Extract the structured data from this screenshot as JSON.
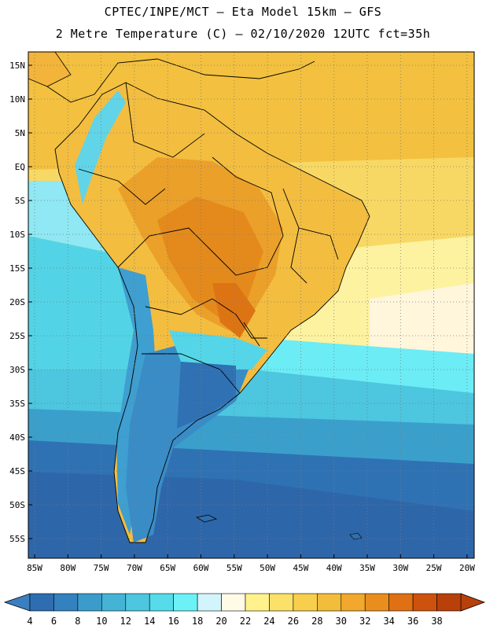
{
  "title_line1": "CPTEC/INPE/MCT –  Eta Model 15km – GFS",
  "title_line2": "2 Metre Temperature (C) – 02/10/2020 12UTC fct=35h",
  "lat_labels": [
    "15N",
    "10N",
    "5N",
    "EQ",
    "5S",
    "10S",
    "15S",
    "20S",
    "25S",
    "30S",
    "35S",
    "40S",
    "45S",
    "50S",
    "55S"
  ],
  "lon_labels": [
    "85W",
    "80W",
    "75W",
    "70W",
    "65W",
    "60W",
    "55W",
    "50W",
    "45W",
    "40W",
    "35W",
    "30W",
    "25W",
    "20W"
  ],
  "colorbar": {
    "labels": [
      "4",
      "6",
      "8",
      "10",
      "12",
      "14",
      "16",
      "18",
      "20",
      "22",
      "24",
      "26",
      "28",
      "30",
      "32",
      "34",
      "36",
      "38"
    ],
    "low_color": "#3b7fc0",
    "high_color": "#b8400a",
    "colors": [
      "#2e6db0",
      "#3381be",
      "#3b9ccb",
      "#45b3d6",
      "#4dc6e0",
      "#55dbe9",
      "#6cf1f6",
      "#d2f4fb",
      "#fffbe6",
      "#fff28c",
      "#fbe06a",
      "#f7cf4d",
      "#f1bd3a",
      "#f2a82c",
      "#e98e1e",
      "#df7114",
      "#cd520d",
      "#b8400a"
    ]
  },
  "palette": {
    "sea_warm": "#f5cd48",
    "land_hot": "#e99a22",
    "land_warm": "#f0b33a",
    "ocean_cool": "#52d4e6",
    "ocean_cold": "#2f6fb1"
  }
}
